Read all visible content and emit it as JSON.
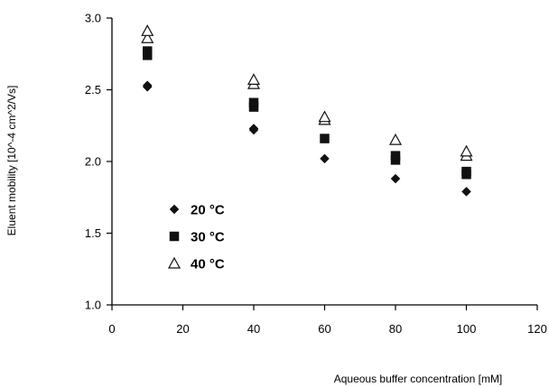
{
  "chart_data": {
    "type": "scatter",
    "title": "",
    "xlabel": "Aqueous buffer concentration [mM]",
    "ylabel": "Eluent mobility [10^-4 cm^2/Vs]",
    "xlim": [
      0,
      120
    ],
    "ylim": [
      1.0,
      3.0
    ],
    "xticks": [
      0,
      20,
      40,
      60,
      80,
      100,
      120
    ],
    "yticks": [
      1.0,
      1.5,
      2.0,
      2.5,
      3.0
    ],
    "xtick_labels": [
      "0",
      "20",
      "40",
      "60",
      "80",
      "100",
      "120"
    ],
    "ytick_labels": [
      "1.0",
      "1.5",
      "2.0",
      "2.5",
      "3.0"
    ],
    "grid": false,
    "legend_position": "inside-lower-left",
    "series": [
      {
        "name": "20 °C",
        "marker": "diamond",
        "color": "#111111",
        "points": [
          {
            "x": 10,
            "y": 2.52
          },
          {
            "x": 10,
            "y": 2.53
          },
          {
            "x": 40,
            "y": 2.22
          },
          {
            "x": 40,
            "y": 2.23
          },
          {
            "x": 60,
            "y": 2.02
          },
          {
            "x": 80,
            "y": 1.88
          },
          {
            "x": 100,
            "y": 1.79
          }
        ]
      },
      {
        "name": "30 °C",
        "marker": "square",
        "color": "#111111",
        "points": [
          {
            "x": 10,
            "y": 2.74
          },
          {
            "x": 10,
            "y": 2.77
          },
          {
            "x": 40,
            "y": 2.38
          },
          {
            "x": 40,
            "y": 2.41
          },
          {
            "x": 60,
            "y": 2.16
          },
          {
            "x": 80,
            "y": 2.01
          },
          {
            "x": 80,
            "y": 2.04
          },
          {
            "x": 100,
            "y": 1.91
          },
          {
            "x": 100,
            "y": 1.93
          }
        ]
      },
      {
        "name": "40 °C",
        "marker": "triangle-open",
        "color": "#111111",
        "points": [
          {
            "x": 10,
            "y": 2.86
          },
          {
            "x": 10,
            "y": 2.91
          },
          {
            "x": 40,
            "y": 2.54
          },
          {
            "x": 40,
            "y": 2.57
          },
          {
            "x": 60,
            "y": 2.29
          },
          {
            "x": 60,
            "y": 2.31
          },
          {
            "x": 80,
            "y": 2.15
          },
          {
            "x": 100,
            "y": 2.04
          },
          {
            "x": 100,
            "y": 2.07
          }
        ]
      }
    ]
  }
}
